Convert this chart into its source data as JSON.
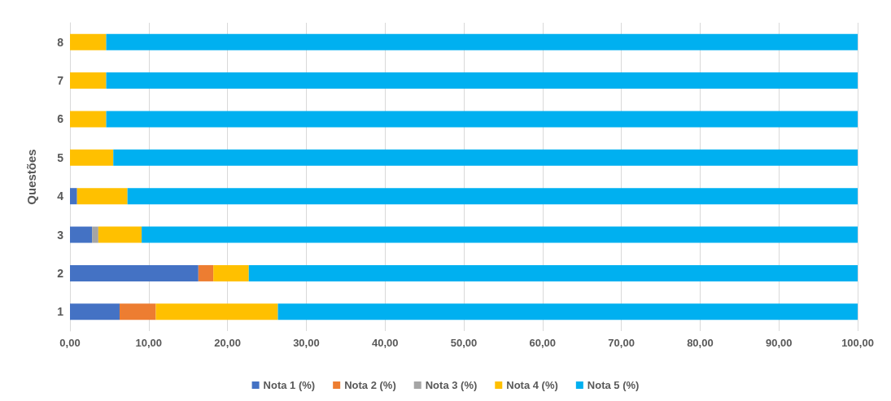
{
  "chart_data": {
    "type": "bar",
    "orientation": "horizontal",
    "stacked": true,
    "ylabel": "Questões",
    "categories": [
      "8",
      "7",
      "6",
      "5",
      "4",
      "3",
      "2",
      "1"
    ],
    "series": [
      {
        "name": "Nota 1 (%)",
        "color": "#4472c4",
        "values": [
          0,
          0,
          0,
          0,
          0.9,
          2.8,
          16.3,
          6.3
        ]
      },
      {
        "name": "Nota 2 (%)",
        "color": "#ed7d31",
        "values": [
          0,
          0,
          0,
          0,
          0,
          0,
          1.9,
          4.6
        ]
      },
      {
        "name": "Nota 3 (%)",
        "color": "#a5a5a5",
        "values": [
          0,
          0,
          0,
          0,
          0,
          0.8,
          0,
          0
        ]
      },
      {
        "name": "Nota 4 (%)",
        "color": "#ffc000",
        "values": [
          4.6,
          4.6,
          4.6,
          5.5,
          6.4,
          5.5,
          4.5,
          15.5
        ]
      },
      {
        "name": "Nota 5 (%)",
        "color": "#00b0f0",
        "values": [
          95.4,
          95.4,
          95.4,
          94.5,
          92.7,
          90.9,
          77.3,
          73.6
        ]
      }
    ],
    "xlim": [
      0,
      100
    ],
    "xticks": [
      {
        "value": 0,
        "label": "0,00"
      },
      {
        "value": 10,
        "label": "10,00"
      },
      {
        "value": 20,
        "label": "20,00"
      },
      {
        "value": 30,
        "label": "30,00"
      },
      {
        "value": 40,
        "label": "40,00"
      },
      {
        "value": 50,
        "label": "50,00"
      },
      {
        "value": 60,
        "label": "60,00"
      },
      {
        "value": 70,
        "label": "70,00"
      },
      {
        "value": 80,
        "label": "80,00"
      },
      {
        "value": 90,
        "label": "90,00"
      },
      {
        "value": 100,
        "label": "100,00"
      }
    ],
    "grid": "x",
    "legend": "bottom"
  }
}
